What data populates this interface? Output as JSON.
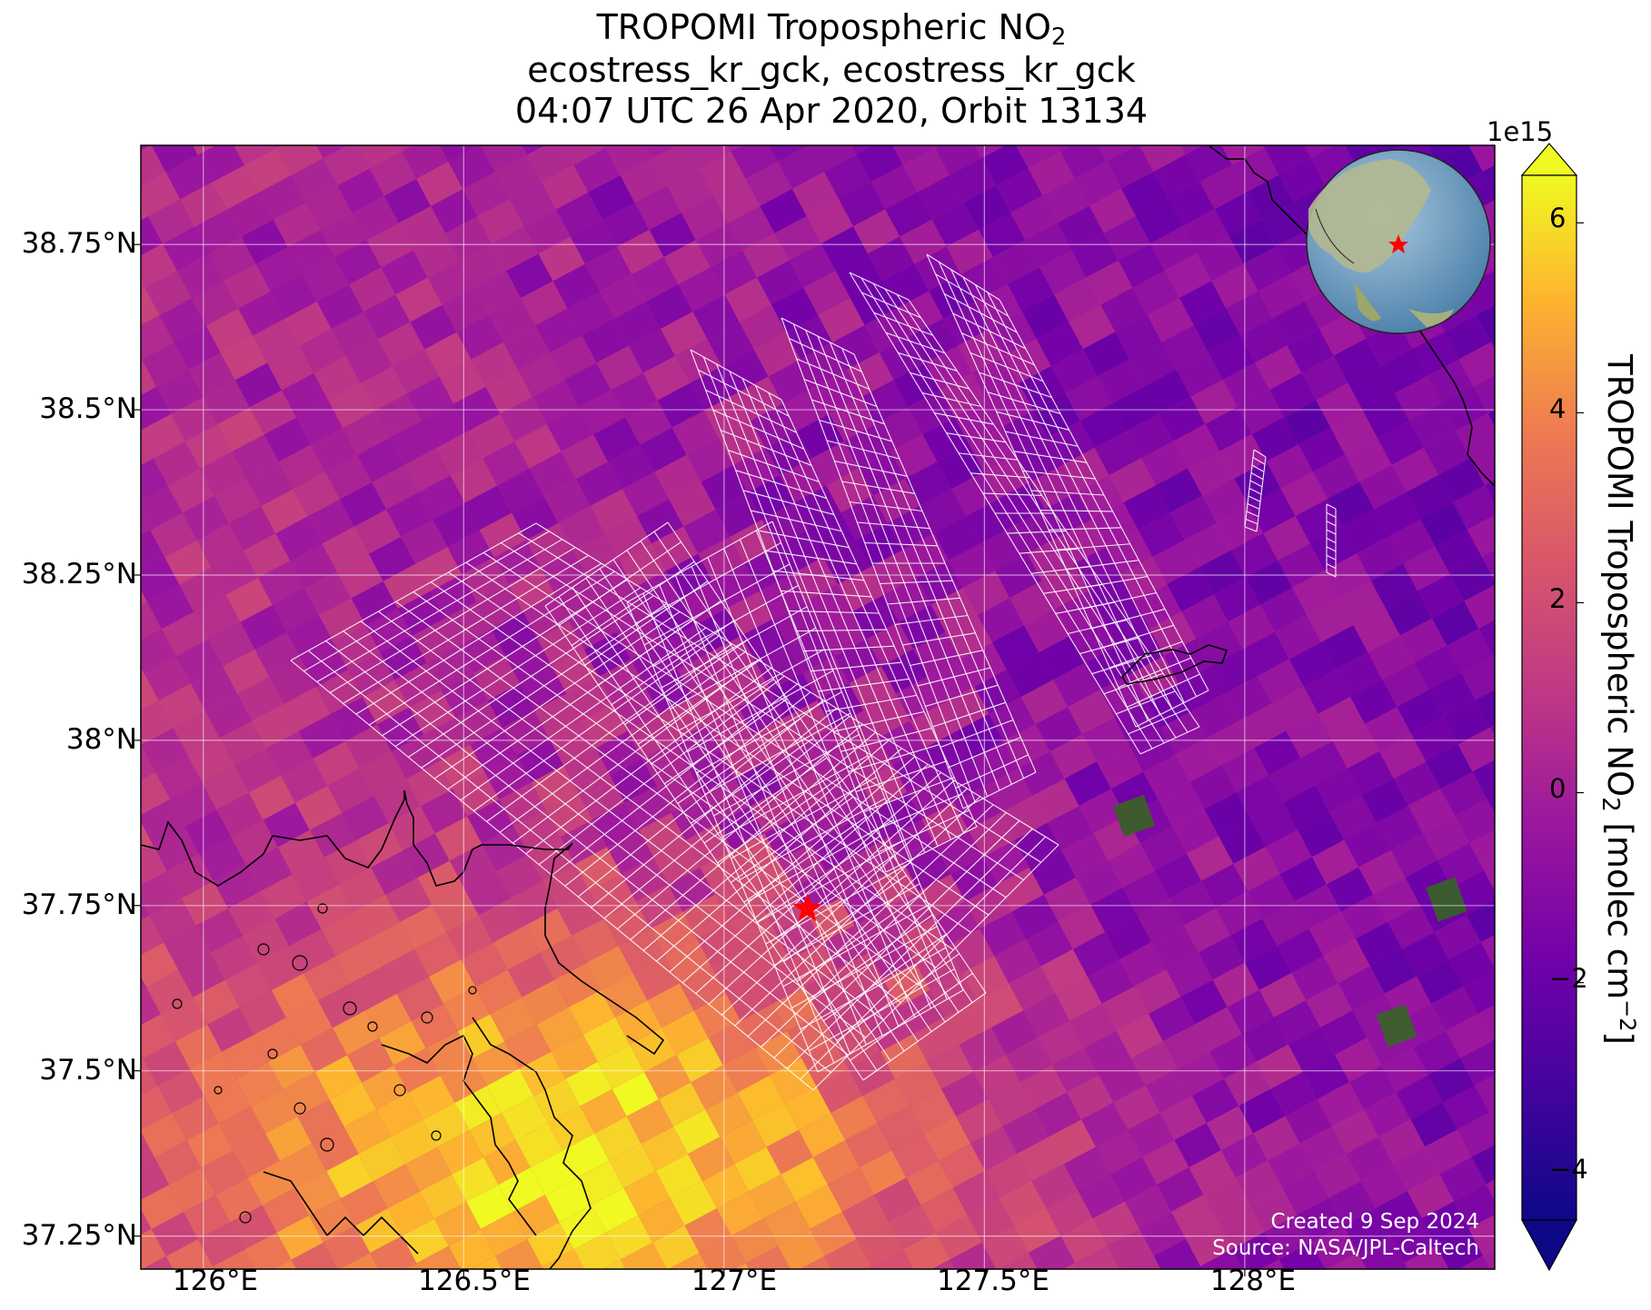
{
  "title": {
    "line1_main": "TROPOMI Tropospheric NO",
    "line1_sub": "2",
    "line2": "ecostress_kr_gck, ecostress_kr_gck",
    "line3": "04:07 UTC 26 Apr 2020, Orbit 13134"
  },
  "map": {
    "lon_range": [
      125.88,
      128.48
    ],
    "lat_range": [
      37.2,
      38.9
    ],
    "longitude_labels": [
      "126°E",
      "126.5°E",
      "127°E",
      "127.5°E",
      "128°E"
    ],
    "latitude_labels": [
      "38.75°N",
      "38.5°N",
      "38.25°N",
      "38°N",
      "37.75°N",
      "37.5°N",
      "37.25°N"
    ],
    "marker": {
      "symbol": "red-star",
      "lon": 127.16,
      "lat": 37.745,
      "color": "#ff0000"
    },
    "inset": "globe-locator",
    "grid": true
  },
  "colorbar": {
    "label_main": "TROPOMI Tropospheric NO",
    "label_sub": "2",
    "label_units": " [molec cm",
    "label_exp": "−2",
    "label_end": "]",
    "exponent_label": "1e15",
    "ticks": [
      "6",
      "4",
      "2",
      "0",
      "−2",
      "−4"
    ],
    "range": [
      -4.5,
      6.5
    ],
    "colormap": "plasma",
    "extend": "both"
  },
  "credits": {
    "created": "Created 9 Sep 2024",
    "source": "Source: NASA/JPL-Caltech"
  }
}
